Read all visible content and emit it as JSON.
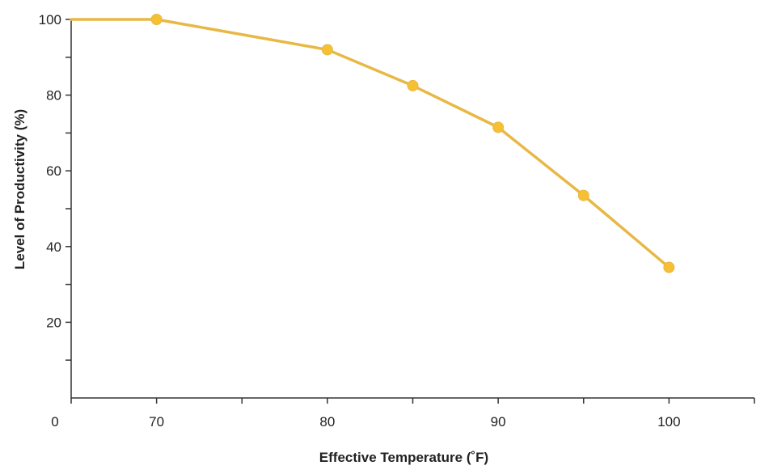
{
  "chart_data": {
    "type": "line",
    "title": "",
    "xlabel": "Effective Temperature (˚F)",
    "ylabel": "Level of Productivity (%)",
    "x_origin_label": "0",
    "x": [
      70,
      80,
      85,
      90,
      95,
      100
    ],
    "y": [
      100,
      92,
      82.5,
      71.5,
      53.5,
      34.5
    ],
    "line_start": {
      "x": 65,
      "y": 100
    },
    "series": [
      {
        "name": "Productivity",
        "x": [
          70,
          80,
          85,
          90,
          95,
          100
        ],
        "y": [
          100,
          92,
          82.5,
          71.5,
          53.5,
          34.5
        ]
      }
    ],
    "xlim": [
      65,
      105
    ],
    "ylim": [
      0,
      100
    ],
    "x_ticks": [
      65,
      70,
      75,
      80,
      85,
      90,
      95,
      100,
      105
    ],
    "x_tick_labels": [
      {
        "value": 70,
        "label": "70"
      },
      {
        "value": 80,
        "label": "80"
      },
      {
        "value": 90,
        "label": "90"
      },
      {
        "value": 100,
        "label": "100"
      }
    ],
    "y_ticks": [
      10,
      20,
      30,
      40,
      50,
      60,
      70,
      80,
      90,
      100
    ],
    "y_tick_labels": [
      {
        "value": 20,
        "label": "20"
      },
      {
        "value": 40,
        "label": "40"
      },
      {
        "value": 60,
        "label": "60"
      },
      {
        "value": 80,
        "label": "80"
      },
      {
        "value": 100,
        "label": "100"
      }
    ],
    "grid": false,
    "legend": "none",
    "colors": {
      "line": "#e8b845",
      "marker": "#f6c033",
      "axis": "#333333",
      "text": "#222222"
    }
  }
}
